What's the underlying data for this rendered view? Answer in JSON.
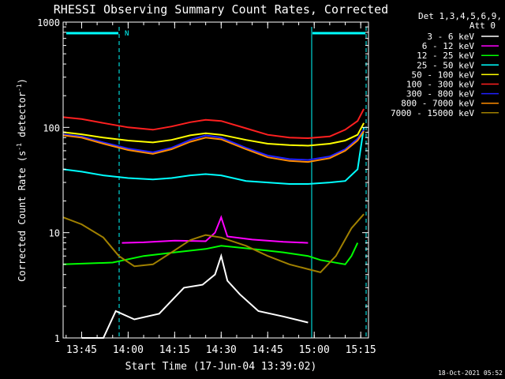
{
  "chart_data": {
    "type": "line",
    "title": "RHESSI Observing Summary Count Rates, Corrected",
    "xlabel": "Start Time (17-Jun-04 13:39:02)",
    "ylabel_main": "Corrected Count Rate (s",
    "ylabel_sup1": "-1",
    "ylabel_mid": " detector",
    "ylabel_sup2": "-1",
    "ylabel_end": ")",
    "y_scale": "log",
    "ylim": [
      1,
      1000
    ],
    "xlim": [
      "13:39:02",
      "15:17:30"
    ],
    "x_ticks": [
      "13:45",
      "14:00",
      "14:15",
      "14:30",
      "14:45",
      "15:00",
      "15:15"
    ],
    "y_ticks": [
      "1",
      "10",
      "100",
      "1000"
    ],
    "legend_header": [
      "Det 1,3,4,5,6,9,",
      "Att 0"
    ],
    "legend_placement": "right",
    "night_marker": "N",
    "footer_date": "18-Oct-2021 05:52",
    "series": [
      {
        "name": "3 - 6 keV",
        "color": "#ffffff",
        "x": [
          "13:45",
          "13:52",
          "13:56",
          "14:02",
          "14:10",
          "14:18",
          "14:24",
          "14:28",
          "14:30",
          "14:32",
          "14:36",
          "14:42",
          "14:50",
          "14:58"
        ],
        "y": [
          1,
          1,
          1.8,
          1.5,
          1.7,
          3,
          3.2,
          4,
          6,
          3.5,
          2.6,
          1.8,
          1.6,
          1.4
        ]
      },
      {
        "name": "6 - 12 keV",
        "color": "#ff00ff",
        "x": [
          "13:58",
          "14:05",
          "14:15",
          "14:25",
          "14:28",
          "14:30",
          "14:32",
          "14:40",
          "14:50",
          "14:58"
        ],
        "y": [
          8,
          8.1,
          8.4,
          8.3,
          10,
          14,
          9.2,
          8.6,
          8.2,
          8
        ]
      },
      {
        "name": "12 - 25 keV",
        "color": "#00ff00",
        "x": [
          "13:39",
          "13:55",
          "14:05",
          "14:15",
          "14:25",
          "14:30",
          "14:40",
          "14:50",
          "14:58",
          "15:02",
          "15:10",
          "15:12",
          "15:14"
        ],
        "y": [
          5,
          5.2,
          6,
          6.5,
          7,
          7.5,
          7,
          6.5,
          6,
          5.5,
          5,
          6,
          8
        ]
      },
      {
        "name": "25 - 50 keV",
        "color": "#00ffff",
        "x": [
          "13:39",
          "13:45",
          "13:52",
          "14:00",
          "14:08",
          "14:14",
          "14:20",
          "14:25",
          "14:30",
          "14:38",
          "14:45",
          "14:52",
          "14:58",
          "15:05",
          "15:10",
          "15:14",
          "15:16"
        ],
        "y": [
          40,
          38,
          35,
          33,
          32,
          33,
          35,
          36,
          35,
          31,
          30,
          29,
          29,
          30,
          31,
          40,
          100
        ]
      },
      {
        "name": "50 - 100 keV",
        "color": "#ffff00",
        "x": [
          "13:39",
          "13:45",
          "13:52",
          "14:00",
          "14:08",
          "14:14",
          "14:20",
          "14:25",
          "14:30",
          "14:38",
          "14:45",
          "14:52",
          "14:58",
          "15:05",
          "15:10",
          "15:14",
          "15:16"
        ],
        "y": [
          90,
          86,
          80,
          75,
          72,
          76,
          84,
          88,
          85,
          76,
          70,
          68,
          67,
          70,
          75,
          85,
          110
        ]
      },
      {
        "name": "100 - 300 keV",
        "color": "#ff2020",
        "x": [
          "13:39",
          "13:45",
          "13:52",
          "14:00",
          "14:08",
          "14:14",
          "14:20",
          "14:25",
          "14:30",
          "14:38",
          "14:45",
          "14:52",
          "14:58",
          "15:05",
          "15:10",
          "15:14",
          "15:16"
        ],
        "y": [
          125,
          120,
          110,
          100,
          95,
          102,
          112,
          118,
          115,
          98,
          85,
          80,
          79,
          82,
          95,
          115,
          150
        ]
      },
      {
        "name": "300 - 800 keV",
        "color": "#2020ff",
        "x": [
          "13:39",
          "13:45",
          "13:52",
          "14:00",
          "14:08",
          "14:14",
          "14:20",
          "14:25",
          "14:30",
          "14:38",
          "14:45",
          "14:52",
          "14:58",
          "15:05",
          "15:10",
          "15:14",
          "15:16"
        ],
        "y": [
          86,
          82,
          72,
          63,
          58,
          64,
          76,
          84,
          80,
          64,
          54,
          50,
          49,
          53,
          62,
          78,
          95
        ]
      },
      {
        "name": "800 - 7000 keV",
        "color": "#ff8c00",
        "x": [
          "13:39",
          "13:45",
          "13:52",
          "14:00",
          "14:08",
          "14:14",
          "14:20",
          "14:25",
          "14:30",
          "14:38",
          "14:45",
          "14:52",
          "14:58",
          "15:05",
          "15:10",
          "15:14",
          "15:16"
        ],
        "y": [
          84,
          80,
          70,
          61,
          56,
          62,
          73,
          80,
          77,
          62,
          52,
          48,
          47,
          51,
          60,
          75,
          92
        ]
      },
      {
        "name": "7000 - 15000 keV",
        "color": "#a08000",
        "x": [
          "13:39",
          "13:45",
          "13:52",
          "13:57",
          "14:02",
          "14:08",
          "14:14",
          "14:20",
          "14:25",
          "14:30",
          "14:38",
          "14:45",
          "14:52",
          "14:58",
          "15:02",
          "15:07",
          "15:12",
          "15:16"
        ],
        "y": [
          14,
          12,
          9,
          6,
          4.8,
          5,
          6.5,
          8.5,
          9.5,
          9,
          7.5,
          6,
          5,
          4.5,
          4.2,
          6,
          11,
          15
        ]
      }
    ]
  }
}
